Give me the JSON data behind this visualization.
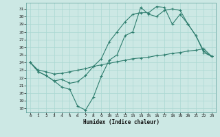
{
  "xlabel": "Humidex (Indice chaleur)",
  "bg_color": "#cce8e4",
  "grid_color": "#aad8d2",
  "line_color": "#2e7d6e",
  "xlim": [
    -0.5,
    23.5
  ],
  "ylim": [
    17.5,
    31.8
  ],
  "xticks": [
    0,
    1,
    2,
    3,
    4,
    5,
    6,
    7,
    8,
    9,
    10,
    11,
    12,
    13,
    14,
    15,
    16,
    17,
    18,
    19,
    20,
    21,
    22,
    23
  ],
  "yticks": [
    18,
    19,
    20,
    21,
    22,
    23,
    24,
    25,
    26,
    27,
    28,
    29,
    30,
    31
  ],
  "line1_x": [
    0,
    1,
    2,
    3,
    4,
    5,
    6,
    7,
    8,
    9,
    10,
    11,
    12,
    13,
    14,
    15,
    16,
    17,
    18,
    19,
    20,
    21,
    22,
    23
  ],
  "line1_y": [
    24.0,
    22.8,
    22.3,
    21.6,
    20.8,
    20.5,
    18.3,
    17.8,
    19.5,
    22.2,
    24.3,
    25.0,
    27.5,
    28.0,
    31.2,
    30.3,
    30.0,
    30.8,
    31.0,
    30.8,
    29.0,
    27.5,
    25.3,
    24.8
  ],
  "line2_x": [
    0,
    1,
    2,
    3,
    4,
    5,
    6,
    7,
    8,
    9,
    10,
    11,
    12,
    13,
    14,
    15,
    16,
    17,
    18,
    19,
    20,
    21,
    22,
    23
  ],
  "line2_y": [
    24.0,
    23.0,
    22.8,
    22.5,
    22.6,
    22.8,
    23.0,
    23.2,
    23.5,
    23.7,
    23.9,
    24.1,
    24.3,
    24.5,
    24.6,
    24.7,
    24.9,
    25.0,
    25.2,
    25.3,
    25.5,
    25.6,
    25.8,
    24.8
  ],
  "line3_x": [
    0,
    1,
    2,
    3,
    4,
    5,
    6,
    7,
    8,
    9,
    10,
    11,
    12,
    13,
    14,
    15,
    16,
    17,
    18,
    19,
    20,
    21,
    22,
    23
  ],
  "line3_y": [
    24.0,
    22.8,
    22.3,
    21.6,
    21.8,
    21.3,
    21.5,
    22.3,
    23.5,
    24.5,
    26.7,
    28.0,
    29.3,
    30.3,
    30.5,
    30.5,
    31.3,
    31.2,
    29.0,
    30.3,
    29.0,
    27.5,
    25.5,
    24.8
  ]
}
